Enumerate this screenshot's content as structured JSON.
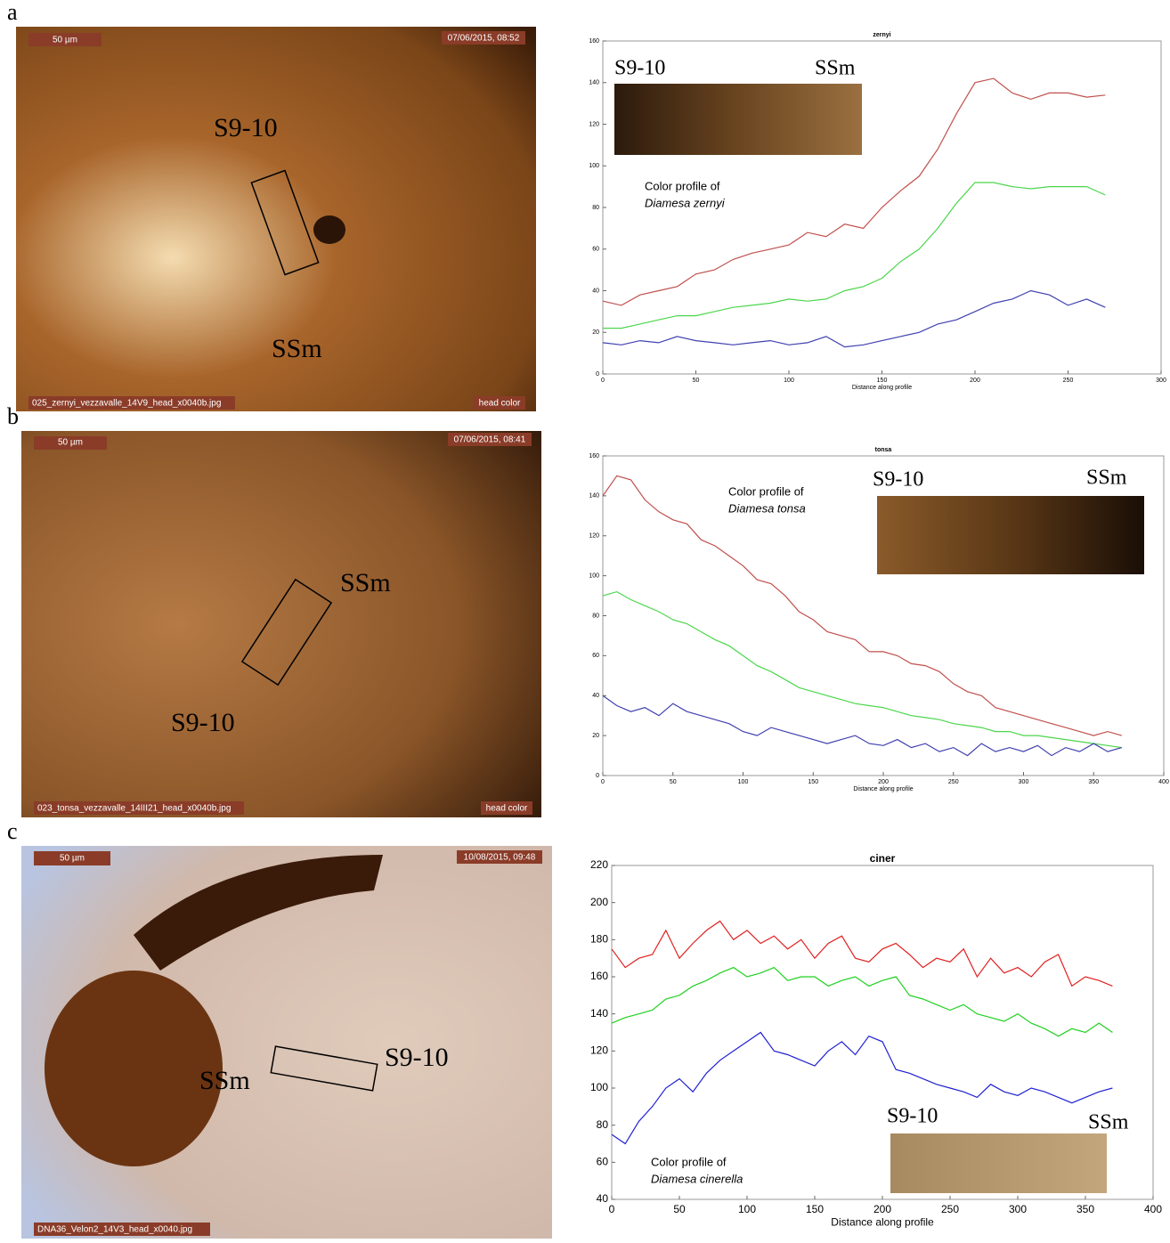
{
  "chart_data": [
    {
      "type": "line",
      "title": "zernyi",
      "xlabel": "Distance along profile",
      "x": [
        0,
        10,
        20,
        30,
        40,
        50,
        60,
        70,
        80,
        90,
        100,
        110,
        120,
        130,
        140,
        150,
        160,
        170,
        180,
        190,
        200,
        210,
        220,
        230,
        240,
        250,
        260,
        270
      ],
      "series": [
        {
          "color": "#c0504d",
          "values": [
            35,
            33,
            38,
            40,
            42,
            48,
            50,
            55,
            58,
            60,
            62,
            68,
            66,
            72,
            70,
            80,
            88,
            95,
            108,
            125,
            140,
            142,
            135,
            132,
            135,
            135,
            133,
            134
          ]
        },
        {
          "color": "#4cd64c",
          "values": [
            22,
            22,
            24,
            26,
            28,
            28,
            30,
            32,
            33,
            34,
            36,
            35,
            36,
            40,
            42,
            46,
            54,
            60,
            70,
            82,
            92,
            92,
            90,
            89,
            90,
            90,
            90,
            86
          ]
        },
        {
          "color": "#4040b0",
          "values": [
            15,
            14,
            16,
            15,
            18,
            16,
            15,
            14,
            15,
            16,
            14,
            15,
            18,
            13,
            14,
            16,
            18,
            20,
            24,
            26,
            30,
            34,
            36,
            40,
            38,
            33,
            36,
            32
          ]
        }
      ],
      "xlim": [
        0,
        300
      ],
      "xticks": [
        0,
        50,
        100,
        150,
        200,
        250,
        300
      ],
      "ylim": [
        0,
        160
      ],
      "yticks": [
        0,
        20,
        40,
        60,
        80,
        100,
        120,
        140,
        160
      ],
      "inset_labels": [
        "S9-10",
        "SSm"
      ],
      "annotations": [
        "Color profile of",
        "Diamesa zernyi"
      ]
    },
    {
      "type": "line",
      "title": "tonsa",
      "xlabel": "Distance along profile",
      "x": [
        0,
        10,
        20,
        30,
        40,
        50,
        60,
        70,
        80,
        90,
        100,
        110,
        120,
        130,
        140,
        150,
        160,
        170,
        180,
        190,
        200,
        210,
        220,
        230,
        240,
        250,
        260,
        270,
        280,
        290,
        300,
        310,
        320,
        330,
        340,
        350,
        360,
        370
      ],
      "series": [
        {
          "color": "#c0504d",
          "values": [
            140,
            150,
            148,
            138,
            132,
            128,
            126,
            118,
            115,
            110,
            105,
            98,
            96,
            90,
            82,
            78,
            72,
            70,
            68,
            62,
            62,
            60,
            56,
            55,
            52,
            46,
            42,
            40,
            34,
            32,
            30,
            28,
            26,
            24,
            22,
            20,
            22,
            20
          ]
        },
        {
          "color": "#4cd64c",
          "values": [
            90,
            92,
            88,
            85,
            82,
            78,
            76,
            72,
            68,
            65,
            60,
            55,
            52,
            48,
            44,
            42,
            40,
            38,
            36,
            35,
            34,
            32,
            30,
            29,
            28,
            26,
            25,
            24,
            22,
            22,
            20,
            20,
            19,
            18,
            17,
            16,
            15,
            14
          ]
        },
        {
          "color": "#4040b0",
          "values": [
            40,
            35,
            32,
            34,
            30,
            36,
            32,
            30,
            28,
            26,
            22,
            20,
            24,
            22,
            20,
            18,
            16,
            18,
            20,
            16,
            15,
            18,
            14,
            16,
            12,
            14,
            10,
            16,
            12,
            14,
            12,
            15,
            10,
            14,
            12,
            16,
            12,
            14
          ]
        }
      ],
      "xlim": [
        0,
        400
      ],
      "xticks": [
        0,
        50,
        100,
        150,
        200,
        250,
        300,
        350,
        400
      ],
      "ylim": [
        0,
        160
      ],
      "yticks": [
        0,
        20,
        40,
        60,
        80,
        100,
        120,
        140,
        160
      ],
      "inset_labels": [
        "S9-10",
        "SSm"
      ],
      "annotations": [
        "Color profile of",
        "Diamesa tonsa"
      ]
    },
    {
      "type": "line",
      "title": "ciner",
      "xlabel": "Distance along profile",
      "x": [
        0,
        10,
        20,
        30,
        40,
        50,
        60,
        70,
        80,
        90,
        100,
        110,
        120,
        130,
        140,
        150,
        160,
        170,
        180,
        190,
        200,
        210,
        220,
        230,
        240,
        250,
        260,
        270,
        280,
        290,
        300,
        310,
        320,
        330,
        340,
        350,
        360,
        370
      ],
      "series": [
        {
          "color": "#e02020",
          "values": [
            175,
            165,
            170,
            172,
            185,
            170,
            178,
            185,
            190,
            180,
            185,
            178,
            182,
            175,
            180,
            170,
            178,
            182,
            170,
            168,
            175,
            178,
            172,
            165,
            170,
            168,
            175,
            160,
            170,
            162,
            165,
            160,
            168,
            172,
            155,
            160,
            158,
            155
          ]
        },
        {
          "color": "#20d020",
          "values": [
            135,
            138,
            140,
            142,
            148,
            150,
            155,
            158,
            162,
            165,
            160,
            162,
            165,
            158,
            160,
            160,
            155,
            158,
            160,
            155,
            158,
            160,
            150,
            148,
            145,
            142,
            145,
            140,
            138,
            136,
            140,
            135,
            132,
            128,
            132,
            130,
            135,
            130
          ]
        },
        {
          "color": "#2020d0",
          "values": [
            75,
            70,
            82,
            90,
            100,
            105,
            98,
            108,
            115,
            120,
            125,
            130,
            120,
            118,
            115,
            112,
            120,
            125,
            118,
            128,
            125,
            110,
            108,
            105,
            102,
            100,
            98,
            95,
            102,
            98,
            96,
            100,
            98,
            95,
            92,
            95,
            98,
            100
          ]
        }
      ],
      "xlim": [
        0,
        400
      ],
      "xticks": [
        0,
        50,
        100,
        150,
        200,
        250,
        300,
        350,
        400
      ],
      "ylim": [
        40,
        220
      ],
      "yticks": [
        40,
        60,
        80,
        100,
        120,
        140,
        160,
        180,
        200,
        220
      ],
      "inset_labels": [
        "S9-10",
        "SSm"
      ],
      "annotations": [
        "Color profile of",
        "Diamesa cinerella"
      ]
    }
  ],
  "panels": [
    {
      "label": "a",
      "scale_bar": "50 µm",
      "timestamp": "07/06/2015, 08:52",
      "filename": "025_zernyi_vezzavalle_14V9_head_x0040b.jpg",
      "tag": "head color",
      "marks": [
        "S9-10",
        "SSm"
      ]
    },
    {
      "label": "b",
      "scale_bar": "50 µm",
      "timestamp": "07/06/2015, 08:41",
      "filename": "023_tonsa_vezzavalle_14III21_head_x0040b.jpg",
      "tag": "head color",
      "marks": [
        "SSm",
        "S9-10"
      ]
    },
    {
      "label": "c",
      "scale_bar": "50 µm",
      "timestamp": "10/08/2015, 09:48",
      "filename": "DNA36_Velon2_14V3_head_x0040.jpg",
      "marks": [
        "SSm",
        "S9-10"
      ]
    }
  ]
}
